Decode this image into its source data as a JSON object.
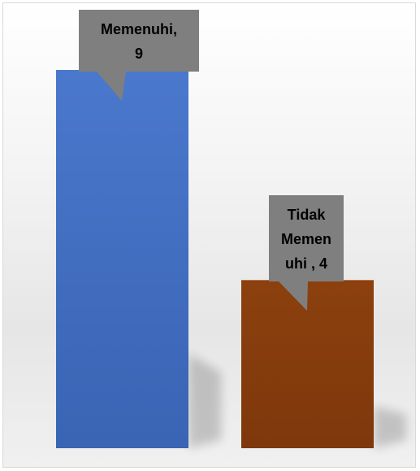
{
  "chart_data": {
    "type": "bar",
    "categories": [
      "Memenuhi",
      "Tidak Memenuhi"
    ],
    "values": [
      9,
      4
    ],
    "data_labels": [
      [
        "Memenuhi,",
        "9"
      ],
      [
        "Tidak",
        "Memen",
        "uhi , 4"
      ]
    ],
    "colors": [
      "#4472c4",
      "#843c0c"
    ],
    "callout_color": "#7f7f7f",
    "title": "",
    "xlabel": "",
    "ylabel": "",
    "ylim": [
      0,
      9
    ],
    "grid": false,
    "legend": "none"
  }
}
